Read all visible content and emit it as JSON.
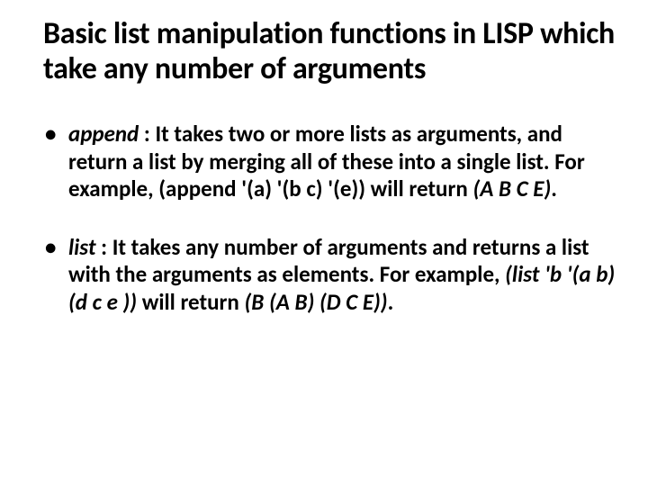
{
  "title": "Basic list manipulation functions in LISP which take any number of arguments",
  "bullets": [
    {
      "fn": "append",
      "desc": " : It takes two or more lists as arguments, and return a list by merging all of these into a single list. For example, (append '(a) '(b c) '(e)) will return ",
      "ret": "(A B C E)",
      "post": "."
    },
    {
      "fn": "list",
      "desc": " : It takes any number of arguments and returns a list with the arguments as elements. For example, ",
      "ex": "(list 'b '(a b)(d c e ))",
      "desc2": " will return ",
      "ret": "(B (A B) (D C E))",
      "post": "."
    }
  ],
  "colors": {
    "bg": "#ffffff",
    "text": "#000000"
  },
  "fonts": {
    "title_size": 34,
    "body_size": 25,
    "family": "Calibri"
  }
}
